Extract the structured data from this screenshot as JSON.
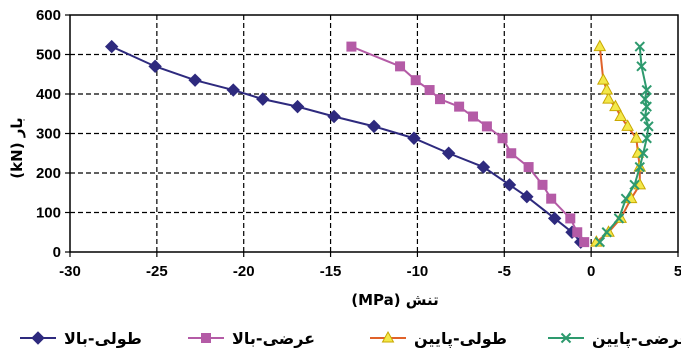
{
  "chart_data": {
    "type": "line",
    "xlabel": "تنش (MPa)",
    "ylabel": "بار (kN)",
    "xlim": [
      -30,
      5
    ],
    "ylim": [
      0,
      600
    ],
    "xticks": [
      -30,
      -25,
      -20,
      -15,
      -10,
      -5,
      0,
      5
    ],
    "yticks": [
      0,
      100,
      200,
      300,
      400,
      500,
      600
    ],
    "grid": true,
    "legend_position": "bottom",
    "series": [
      {
        "name": "طولی-بالا",
        "color": "#2e2a7e",
        "marker": "diamond",
        "x": [
          -0.6,
          -1.1,
          -2.1,
          -3.7,
          -4.7,
          -6.2,
          -8.2,
          -10.2,
          -12.5,
          -14.8,
          -16.9,
          -18.9,
          -20.6,
          -22.8,
          -25.1,
          -27.6
        ],
        "y": [
          25,
          50,
          85,
          140,
          170,
          215,
          250,
          288,
          318,
          343,
          368,
          387,
          410,
          435,
          470,
          520
        ]
      },
      {
        "name": "عرضی-بالا",
        "color": "#b45ba6",
        "marker": "square",
        "x": [
          -0.4,
          -0.8,
          -1.2,
          -2.3,
          -2.8,
          -3.6,
          -4.6,
          -5.1,
          -6.0,
          -6.8,
          -7.6,
          -8.7,
          -9.3,
          -10.1,
          -11.0,
          -13.8
        ],
        "y": [
          25,
          50,
          85,
          135,
          170,
          215,
          250,
          288,
          318,
          343,
          368,
          387,
          410,
          435,
          470,
          520
        ]
      },
      {
        "name": "طولی-پایین",
        "color": "#e0622a",
        "marker": "triangle",
        "fill": "#f3e84a",
        "x": [
          0.3,
          1.0,
          1.7,
          2.3,
          2.8,
          2.8,
          2.7,
          2.6,
          2.1,
          1.7,
          1.4,
          1.0,
          0.9,
          0.7,
          0.5
        ],
        "y": [
          25,
          50,
          85,
          135,
          170,
          215,
          250,
          288,
          318,
          343,
          368,
          387,
          410,
          435,
          520
        ]
      },
      {
        "name": "عرضی-پایین",
        "color": "#2e9a6e",
        "marker": "x",
        "x": [
          0.5,
          0.9,
          1.6,
          2.0,
          2.5,
          2.8,
          3.0,
          3.2,
          3.3,
          3.1,
          3.2,
          3.1,
          3.2,
          2.9,
          2.8
        ],
        "y": [
          25,
          50,
          85,
          135,
          170,
          215,
          250,
          288,
          318,
          343,
          368,
          387,
          410,
          470,
          520
        ]
      }
    ]
  }
}
